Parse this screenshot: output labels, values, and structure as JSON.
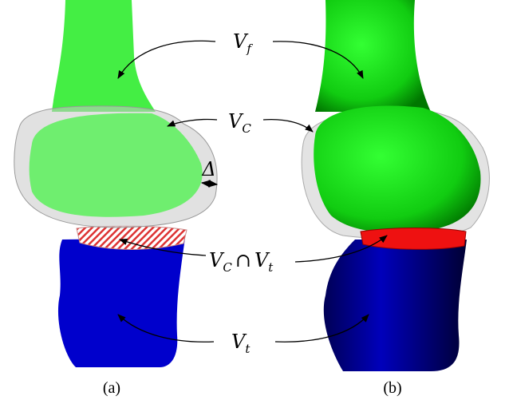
{
  "labels": {
    "femur": {
      "base": "V",
      "sub": "f"
    },
    "cartilage": {
      "base": "V",
      "sub": "C"
    },
    "intersection": {
      "left": {
        "base": "V",
        "sub": "C"
      },
      "op": "∩",
      "right": {
        "base": "V",
        "sub": "t"
      }
    },
    "tibia": {
      "base": "V",
      "sub": "t"
    },
    "delta": "Δ"
  },
  "captions": {
    "a": "(a)",
    "b": "(b)"
  }
}
